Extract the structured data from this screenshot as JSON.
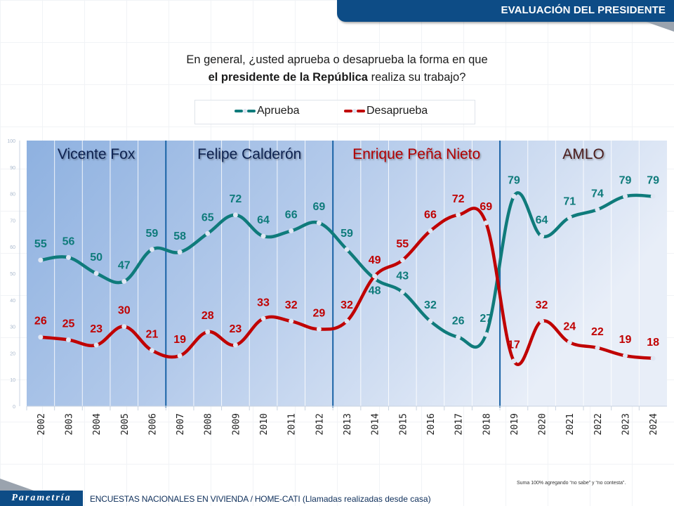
{
  "header": {
    "title": "EVALUACIÓN DEL PRESIDENTE"
  },
  "question": {
    "line1": "En general, ¿usted aprueba o desaprueba la forma en que",
    "line2_bold": "el presidente de la República",
    "line2_rest": " realiza su trabajo?"
  },
  "legend": {
    "items": [
      {
        "label": "Aprueba",
        "color": "#0f7b7b"
      },
      {
        "label": "Desaprueba",
        "color": "#c00000"
      }
    ]
  },
  "footer": {
    "logo": "Parametría",
    "source_main": "ENCUESTAS NACIONALES EN VIVIENDA / HOME-CATI",
    "source_detail": " (Llamadas realizadas desde casa)",
    "note": "Suma 100% agregando “no sabe” y “no contesta”."
  },
  "chart_data": {
    "type": "line",
    "title": "En general, ¿usted aprueba o desaprueba la forma en que el presidente de la República realiza su trabajo?",
    "xlabel": "",
    "ylabel": "",
    "ylim": [
      0,
      100
    ],
    "yticks": [
      0,
      10,
      20,
      30,
      40,
      50,
      60,
      70,
      80,
      90,
      100
    ],
    "legend_position": "top-center",
    "grid": "vertical",
    "categories": [
      "2002",
      "2003",
      "2004",
      "2005",
      "2006",
      "2007",
      "2008",
      "2009",
      "2010",
      "2011",
      "2012",
      "2013",
      "2014",
      "2015",
      "2016",
      "2017",
      "2018",
      "2019",
      "2020",
      "2021",
      "2022",
      "2023",
      "2024"
    ],
    "series": [
      {
        "name": "Aprueba",
        "color": "#0f7b7b",
        "values": [
          55,
          56,
          50,
          47,
          59,
          58,
          65,
          72,
          64,
          66,
          69,
          59,
          48,
          43,
          32,
          26,
          27,
          79,
          64,
          71,
          74,
          79,
          79
        ]
      },
      {
        "name": "Desaprueba",
        "color": "#c00000",
        "values": [
          26,
          25,
          23,
          30,
          21,
          19,
          28,
          23,
          33,
          32,
          29,
          32,
          49,
          55,
          66,
          72,
          69,
          17,
          32,
          24,
          22,
          19,
          18
        ]
      }
    ],
    "periods": [
      {
        "label": "Vicente Fox",
        "from": "2002",
        "to": "2006",
        "label_color": "#0d2050"
      },
      {
        "label": "Felipe Calderón",
        "from": "2007",
        "to": "2012",
        "label_color": "#0d2050"
      },
      {
        "label": "Enrique Peña Nieto",
        "from": "2013",
        "to": "2018",
        "label_color": "#b00000"
      },
      {
        "label": "AMLO",
        "from": "2019",
        "to": "2024",
        "label_color": "#4a1a1a"
      }
    ]
  }
}
